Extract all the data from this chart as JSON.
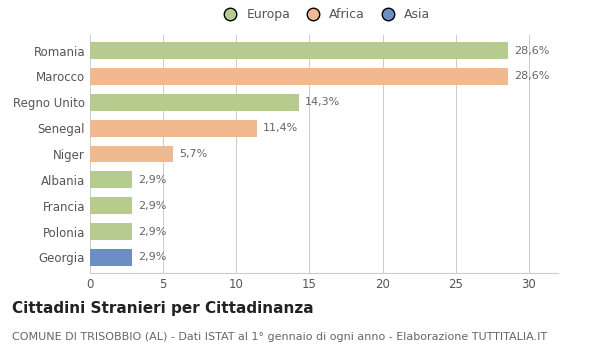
{
  "categories": [
    "Romania",
    "Marocco",
    "Regno Unito",
    "Senegal",
    "Niger",
    "Albania",
    "Francia",
    "Polonia",
    "Georgia"
  ],
  "values": [
    28.6,
    28.6,
    14.3,
    11.4,
    5.7,
    2.9,
    2.9,
    2.9,
    2.9
  ],
  "labels": [
    "28,6%",
    "28,6%",
    "14,3%",
    "11,4%",
    "5,7%",
    "2,9%",
    "2,9%",
    "2,9%",
    "2,9%"
  ],
  "colors": [
    "#b5cc8e",
    "#f0b990",
    "#b5cc8e",
    "#f0b990",
    "#f0b990",
    "#b5cc8e",
    "#b5cc8e",
    "#b5cc8e",
    "#6b8ec4"
  ],
  "legend_labels": [
    "Europa",
    "Africa",
    "Asia"
  ],
  "legend_colors": [
    "#b5cc8e",
    "#f0b990",
    "#6b8ec4"
  ],
  "title": "Cittadini Stranieri per Cittadinanza",
  "subtitle": "COMUNE DI TRISOBBIO (AL) - Dati ISTAT al 1° gennaio di ogni anno - Elaborazione TUTTITALIA.IT",
  "xlim": [
    0,
    32
  ],
  "xticks": [
    0,
    5,
    10,
    15,
    20,
    25,
    30
  ],
  "background_color": "#ffffff",
  "grid_color": "#cccccc",
  "bar_height": 0.65,
  "title_fontsize": 11,
  "subtitle_fontsize": 8,
  "label_fontsize": 8,
  "tick_fontsize": 8.5,
  "legend_fontsize": 9
}
